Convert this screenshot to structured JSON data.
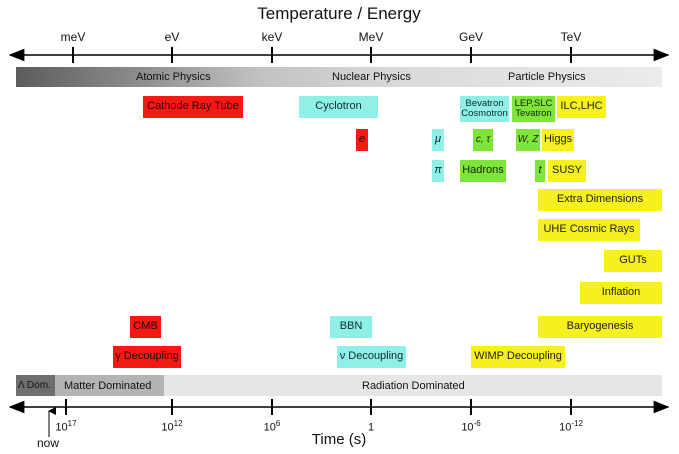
{
  "top_axis": {
    "title": "Temperature / Energy",
    "ticks": [
      "meV",
      "eV",
      "keV",
      "MeV",
      "GeV",
      "TeV"
    ]
  },
  "physics_band": {
    "atomic": "Atomic Physics",
    "nuclear": "Nuclear Physics",
    "particle": "Particle Physics"
  },
  "boxes": {
    "cathode_ray_tube": "Cathode Ray Tube",
    "cyclotron": "Cyclotron",
    "bevatron": "Bevatron",
    "cosmotron": "Cosmotron",
    "lep_slc": "LEP,SLC",
    "tevatron": "Tevatron",
    "ilc_lhc": "ILC,LHC",
    "electron": "e",
    "muon": "μ",
    "c_tau": "c, τ",
    "w_z": "W, Z",
    "higgs": "Higgs",
    "pion": "π",
    "hadrons": "Hadrons",
    "top": "t",
    "susy": "SUSY",
    "extra_dimensions": "Extra Dimensions",
    "uhe_cosmic_rays": "UHE Cosmic Rays",
    "guts": "GUTs",
    "inflation": "Inflation",
    "cmb": "CMB",
    "bbn": "BBN",
    "baryogenesis": "Baryogenesis",
    "gamma_decoupling": "γ Decoupling",
    "nu_decoupling": "ν Decoupling",
    "wimp_decoupling": "WIMP Decoupling"
  },
  "era_band": {
    "lambda_dominated": "Λ Dom.",
    "matter_dominated": "Matter Dominated",
    "radiation_dominated": "Radiation Dominated"
  },
  "bottom_axis": {
    "title": "Time (s)",
    "now_label": "now",
    "ticks": [
      {
        "base": "10",
        "exp": "17"
      },
      {
        "base": "10",
        "exp": "12"
      },
      {
        "base": "10",
        "exp": "6"
      },
      {
        "base": "1",
        "exp": ""
      },
      {
        "base": "10",
        "exp": "-6"
      },
      {
        "base": "10",
        "exp": "-12"
      }
    ]
  },
  "colors": {
    "red": "#f21a12",
    "cyan": "#8ff0e8",
    "yellow": "#f5f01e",
    "green": "#7ee63a"
  }
}
